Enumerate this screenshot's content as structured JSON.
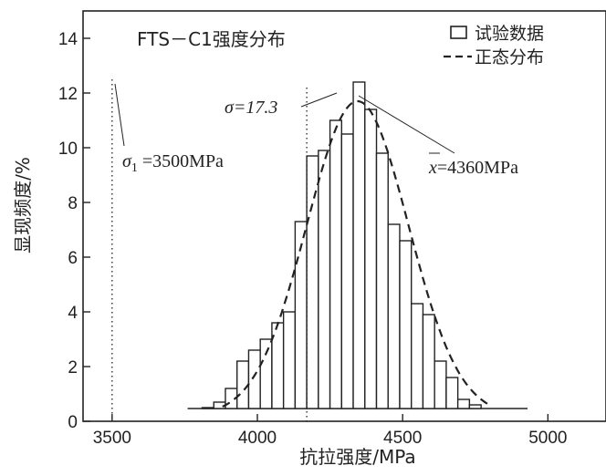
{
  "chart_data": {
    "type": "bar",
    "title": "FTS－C1强度分布",
    "xlabel": "抗拉强度/MPa",
    "ylabel": "显现频度/%",
    "xlim": [
      3400,
      5200
    ],
    "ylim": [
      0,
      15
    ],
    "xticks": [
      3500,
      4000,
      4500,
      5000
    ],
    "yticks": [
      0,
      2,
      4,
      6,
      8,
      10,
      12,
      14
    ],
    "bin_width": 40,
    "bins": [
      {
        "x": 3790,
        "v": 0.4
      },
      {
        "x": 3830,
        "v": 0.5
      },
      {
        "x": 3870,
        "v": 0.7
      },
      {
        "x": 3910,
        "v": 1.2
      },
      {
        "x": 3950,
        "v": 2.2
      },
      {
        "x": 3990,
        "v": 2.6
      },
      {
        "x": 4030,
        "v": 3.0
      },
      {
        "x": 4070,
        "v": 3.6
      },
      {
        "x": 4110,
        "v": 4.0
      },
      {
        "x": 4150,
        "v": 7.3
      },
      {
        "x": 4190,
        "v": 9.7
      },
      {
        "x": 4230,
        "v": 9.9
      },
      {
        "x": 4270,
        "v": 11.0
      },
      {
        "x": 4310,
        "v": 10.5
      },
      {
        "x": 4350,
        "v": 12.4
      },
      {
        "x": 4390,
        "v": 11.4
      },
      {
        "x": 4430,
        "v": 9.8
      },
      {
        "x": 4470,
        "v": 7.2
      },
      {
        "x": 4510,
        "v": 6.6
      },
      {
        "x": 4550,
        "v": 4.3
      },
      {
        "x": 4590,
        "v": 3.9
      },
      {
        "x": 4630,
        "v": 2.2
      },
      {
        "x": 4670,
        "v": 1.6
      },
      {
        "x": 4710,
        "v": 0.8
      },
      {
        "x": 4750,
        "v": 0.6
      },
      {
        "x": 4790,
        "v": 0.4
      },
      {
        "x": 4830,
        "v": 0.3
      },
      {
        "x": 4870,
        "v": 0.2
      }
    ],
    "baseline_x_range": [
      3760,
      4930
    ],
    "normal_fit": {
      "mean": 4345,
      "sd": 175,
      "peak": 11.5,
      "x_range": [
        3880,
        4800
      ]
    },
    "vlines": [
      {
        "x": 3500,
        "y_top": 12.5
      },
      {
        "x": 4170,
        "y_top": 12.2
      }
    ],
    "annotations": {
      "sigma1": {
        "prefix": "σ",
        "sub": "1",
        "text": " =3500MPa"
      },
      "sigma": "σ=17.3",
      "mean_symbol": "x",
      "mean_text": "=4360MPa"
    },
    "legend": {
      "position": "top-right",
      "items": [
        {
          "label": "试验数据",
          "style": "bar"
        },
        {
          "label": "正态分布",
          "style": "dashed"
        }
      ]
    }
  }
}
